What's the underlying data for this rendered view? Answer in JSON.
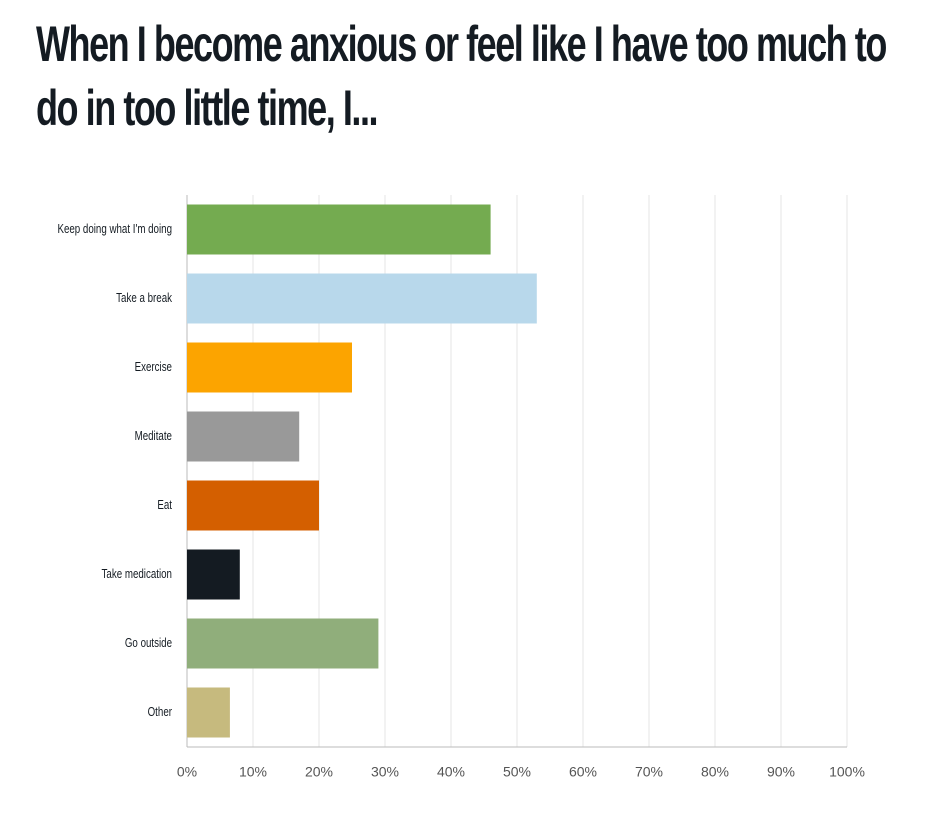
{
  "chart_data": {
    "type": "bar",
    "orientation": "horizontal",
    "title": "When I become anxious or feel like I have too much to do in too little time, I...",
    "categories": [
      "Keep doing what I'm doing",
      "Take a break",
      "Exercise",
      "Meditate",
      "Eat",
      "Take medication",
      "Go outside",
      "Other"
    ],
    "values": [
      46,
      53,
      25,
      17,
      20,
      8,
      29,
      6.5
    ],
    "colors": [
      "#74ab50",
      "#b8d8eb",
      "#fca400",
      "#999999",
      "#d45f00",
      "#141b22",
      "#90ae7b",
      "#c6ba7e"
    ],
    "xlim": [
      0,
      100
    ],
    "xticks": [
      {
        "value": 0,
        "label": "0%"
      },
      {
        "value": 10,
        "label": "10%"
      },
      {
        "value": 20,
        "label": "20%"
      },
      {
        "value": 30,
        "label": "30%"
      },
      {
        "value": 40,
        "label": "40%"
      },
      {
        "value": 50,
        "label": "50%"
      },
      {
        "value": 60,
        "label": "60%"
      },
      {
        "value": 70,
        "label": "70%"
      },
      {
        "value": 80,
        "label": "80%"
      },
      {
        "value": 90,
        "label": "90%"
      },
      {
        "value": 100,
        "label": "100%"
      }
    ],
    "grid": true
  }
}
